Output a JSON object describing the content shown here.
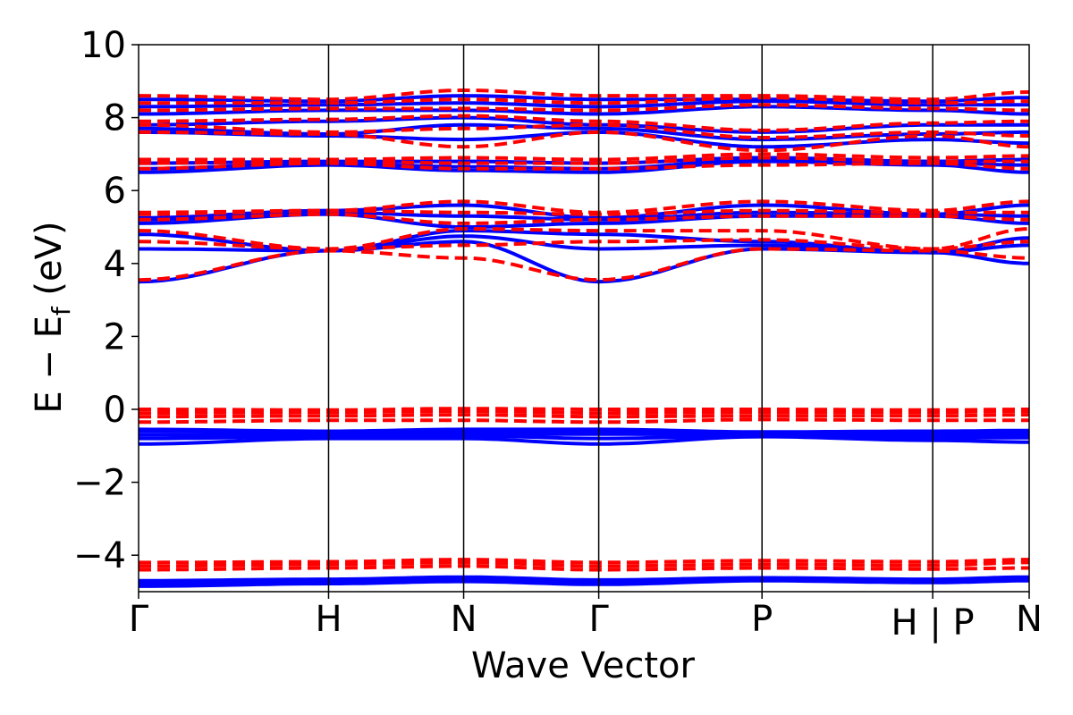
{
  "chart_data": {
    "type": "line",
    "title": "",
    "xlabel": "Wave Vector",
    "ylabel": "E − E",
    "ylabel_sub": "f",
    "ylabel_unit": " (eV)",
    "ylim": [
      -5,
      10
    ],
    "yticks": [
      -4,
      -2,
      0,
      2,
      4,
      6,
      8,
      10
    ],
    "ytick_labels": [
      "−4",
      "−2",
      "0",
      "2",
      "4",
      "6",
      "8",
      "10"
    ],
    "xlim": [
      0,
      6
    ],
    "kpoints": [
      {
        "label": "Γ",
        "x": 0
      },
      {
        "label": "H",
        "x": 1.28
      },
      {
        "label": "N",
        "x": 2.19
      },
      {
        "label": "Γ",
        "x": 3.1
      },
      {
        "label": "P",
        "x": 4.2
      },
      {
        "label": "H | P",
        "x": 5.35
      },
      {
        "label": "N",
        "x": 6.0
      }
    ],
    "grid": false,
    "series": [
      {
        "style": "solid",
        "color": "#0000ff",
        "bands": [
          [
            -4.85,
            -4.78,
            -4.72,
            -4.8,
            -4.7,
            -4.75,
            -4.7
          ],
          [
            -4.8,
            -4.72,
            -4.68,
            -4.75,
            -4.68,
            -4.72,
            -4.66
          ],
          [
            -4.75,
            -4.7,
            -4.65,
            -4.7,
            -4.66,
            -4.7,
            -4.64
          ],
          [
            -4.7,
            -4.66,
            -4.6,
            -4.68,
            -4.62,
            -4.66,
            -4.6
          ],
          [
            -0.95,
            -0.8,
            -0.8,
            -0.95,
            -0.75,
            -0.85,
            -0.9
          ],
          [
            -0.8,
            -0.75,
            -0.72,
            -0.8,
            -0.72,
            -0.78,
            -0.78
          ],
          [
            -0.7,
            -0.7,
            -0.68,
            -0.68,
            -0.7,
            -0.72,
            -0.7
          ],
          [
            -0.6,
            -0.65,
            -0.62,
            -0.6,
            -0.65,
            -0.66,
            -0.65
          ],
          [
            -0.55,
            -0.6,
            -0.55,
            -0.55,
            -0.62,
            -0.6,
            -0.58
          ],
          [
            3.5,
            4.35,
            4.6,
            3.5,
            4.4,
            4.3,
            4.0
          ],
          [
            4.4,
            4.35,
            4.75,
            4.4,
            4.5,
            4.3,
            4.5
          ],
          [
            4.8,
            4.35,
            4.9,
            4.8,
            4.6,
            4.3,
            4.7
          ],
          [
            5.1,
            5.35,
            5.0,
            5.1,
            5.3,
            5.3,
            5.1
          ],
          [
            5.2,
            5.4,
            5.3,
            5.2,
            5.4,
            5.35,
            5.3
          ],
          [
            5.25,
            5.45,
            5.6,
            5.25,
            5.6,
            5.35,
            5.6
          ],
          [
            6.5,
            6.7,
            6.55,
            6.5,
            6.8,
            6.7,
            6.5
          ],
          [
            6.6,
            6.75,
            6.65,
            6.6,
            6.85,
            6.75,
            6.7
          ],
          [
            6.75,
            6.8,
            6.8,
            6.75,
            6.9,
            6.8,
            6.85
          ],
          [
            7.6,
            7.5,
            7.4,
            7.6,
            7.2,
            7.4,
            7.3
          ],
          [
            7.7,
            7.55,
            7.8,
            7.7,
            7.4,
            7.55,
            7.6
          ],
          [
            7.8,
            7.9,
            8.0,
            7.8,
            7.6,
            7.8,
            7.8
          ],
          [
            8.1,
            8.2,
            8.2,
            8.1,
            8.3,
            8.2,
            8.1
          ],
          [
            8.3,
            8.35,
            8.4,
            8.3,
            8.45,
            8.35,
            8.35
          ],
          [
            8.5,
            8.45,
            8.6,
            8.5,
            8.5,
            8.45,
            8.55
          ]
        ]
      },
      {
        "style": "dashed",
        "color": "#ff0000",
        "bands": [
          [
            -4.4,
            -4.35,
            -4.3,
            -4.4,
            -4.35,
            -4.38,
            -4.35
          ],
          [
            -4.3,
            -4.25,
            -4.2,
            -4.3,
            -4.25,
            -4.28,
            -4.2
          ],
          [
            -4.2,
            -4.18,
            -4.12,
            -4.2,
            -4.15,
            -4.18,
            -4.12
          ],
          [
            -0.35,
            -0.3,
            -0.3,
            -0.35,
            -0.28,
            -0.3,
            -0.3
          ],
          [
            -0.2,
            -0.18,
            -0.15,
            -0.2,
            -0.18,
            -0.18,
            -0.15
          ],
          [
            -0.1,
            -0.08,
            -0.05,
            -0.1,
            -0.08,
            -0.08,
            -0.05
          ],
          [
            0.0,
            -0.02,
            0.02,
            0.0,
            0.0,
            -0.02,
            0.0
          ],
          [
            3.55,
            4.35,
            4.15,
            3.55,
            4.4,
            4.35,
            4.15
          ],
          [
            4.6,
            4.4,
            4.5,
            4.6,
            4.65,
            4.4,
            4.6
          ],
          [
            4.9,
            4.4,
            4.95,
            4.9,
            4.9,
            4.4,
            4.95
          ],
          [
            5.2,
            5.35,
            5.1,
            5.2,
            5.3,
            5.3,
            5.2
          ],
          [
            5.35,
            5.45,
            5.4,
            5.35,
            5.45,
            5.4,
            5.4
          ],
          [
            5.4,
            5.45,
            5.7,
            5.4,
            5.7,
            5.45,
            5.7
          ],
          [
            6.6,
            6.75,
            6.6,
            6.6,
            6.7,
            6.75,
            6.6
          ],
          [
            6.75,
            6.8,
            6.75,
            6.75,
            6.9,
            6.8,
            6.8
          ],
          [
            6.85,
            6.85,
            6.9,
            6.85,
            7.0,
            6.9,
            6.95
          ],
          [
            7.6,
            7.55,
            7.2,
            7.6,
            7.1,
            7.5,
            7.2
          ],
          [
            7.8,
            7.6,
            7.7,
            7.8,
            7.45,
            7.6,
            7.5
          ],
          [
            7.9,
            7.95,
            8.05,
            7.9,
            7.65,
            7.85,
            7.9
          ],
          [
            8.2,
            8.25,
            8.25,
            8.2,
            8.35,
            8.25,
            8.2
          ],
          [
            8.4,
            8.4,
            8.5,
            8.4,
            8.55,
            8.4,
            8.45
          ],
          [
            8.6,
            8.5,
            8.75,
            8.6,
            8.6,
            8.5,
            8.7
          ]
        ]
      }
    ]
  }
}
